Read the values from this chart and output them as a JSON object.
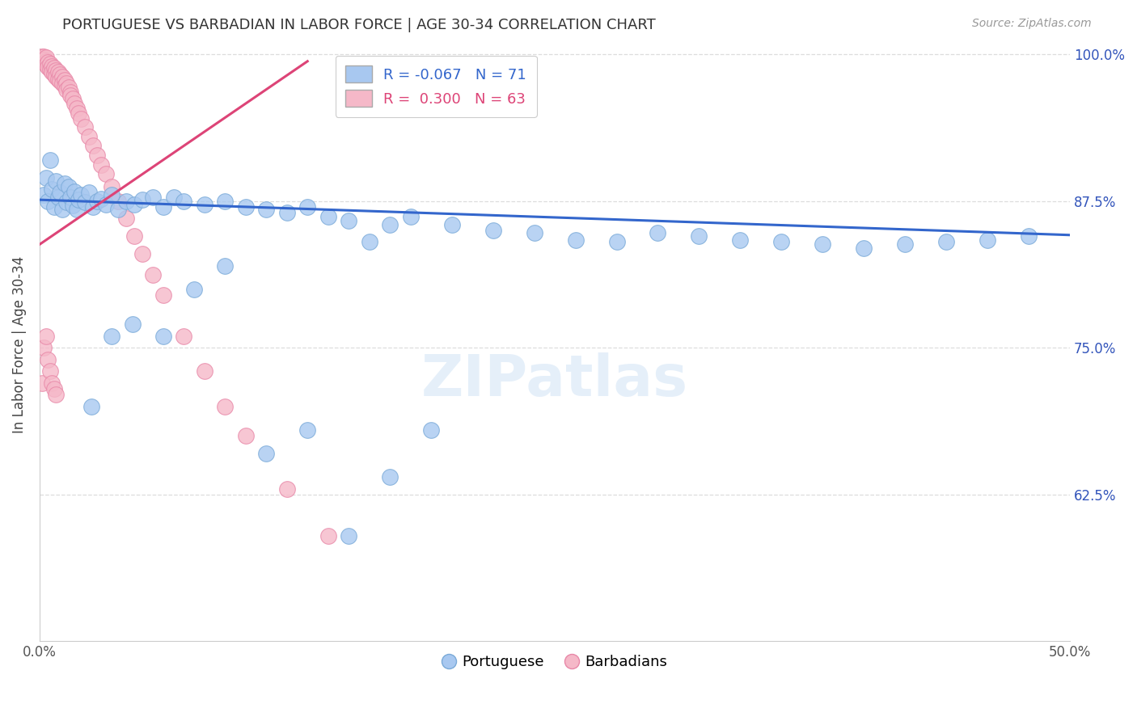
{
  "title": "PORTUGUESE VS BARBADIAN IN LABOR FORCE | AGE 30-34 CORRELATION CHART",
  "source": "Source: ZipAtlas.com",
  "ylabel": "In Labor Force | Age 30-34",
  "xlim": [
    0.0,
    0.5
  ],
  "ylim": [
    0.5,
    1.005
  ],
  "legend_blue_r": "-0.067",
  "legend_blue_n": "71",
  "legend_pink_r": "0.300",
  "legend_pink_n": "63",
  "blue_color": "#a8c8f0",
  "pink_color": "#f5b8c8",
  "blue_edge_color": "#7aaad8",
  "pink_edge_color": "#e888a8",
  "blue_line_color": "#3366cc",
  "pink_line_color": "#dd4477",
  "watermark": "ZIPatlas",
  "portuguese_x": [
    0.002,
    0.003,
    0.004,
    0.005,
    0.006,
    0.007,
    0.008,
    0.009,
    0.01,
    0.011,
    0.012,
    0.013,
    0.014,
    0.015,
    0.016,
    0.017,
    0.018,
    0.019,
    0.02,
    0.022,
    0.024,
    0.026,
    0.028,
    0.03,
    0.032,
    0.035,
    0.038,
    0.042,
    0.046,
    0.05,
    0.055,
    0.06,
    0.065,
    0.07,
    0.08,
    0.09,
    0.1,
    0.11,
    0.12,
    0.13,
    0.14,
    0.15,
    0.16,
    0.17,
    0.18,
    0.2,
    0.22,
    0.24,
    0.26,
    0.28,
    0.3,
    0.32,
    0.34,
    0.36,
    0.38,
    0.4,
    0.42,
    0.44,
    0.46,
    0.48,
    0.025,
    0.035,
    0.045,
    0.06,
    0.075,
    0.09,
    0.11,
    0.13,
    0.15,
    0.17,
    0.19
  ],
  "portuguese_y": [
    0.88,
    0.895,
    0.875,
    0.91,
    0.885,
    0.87,
    0.892,
    0.878,
    0.882,
    0.868,
    0.89,
    0.874,
    0.887,
    0.878,
    0.871,
    0.883,
    0.868,
    0.876,
    0.88,
    0.874,
    0.882,
    0.87,
    0.875,
    0.877,
    0.872,
    0.88,
    0.868,
    0.875,
    0.872,
    0.876,
    0.878,
    0.87,
    0.878,
    0.875,
    0.872,
    0.875,
    0.87,
    0.868,
    0.865,
    0.87,
    0.862,
    0.858,
    0.84,
    0.855,
    0.862,
    0.855,
    0.85,
    0.848,
    0.842,
    0.84,
    0.848,
    0.845,
    0.842,
    0.84,
    0.838,
    0.835,
    0.838,
    0.84,
    0.842,
    0.845,
    0.7,
    0.76,
    0.77,
    0.76,
    0.8,
    0.82,
    0.66,
    0.68,
    0.59,
    0.64,
    0.68
  ],
  "barbadian_x": [
    0.001,
    0.001,
    0.001,
    0.002,
    0.002,
    0.003,
    0.003,
    0.003,
    0.004,
    0.004,
    0.005,
    0.005,
    0.006,
    0.006,
    0.007,
    0.007,
    0.008,
    0.008,
    0.009,
    0.009,
    0.01,
    0.01,
    0.011,
    0.011,
    0.012,
    0.012,
    0.013,
    0.013,
    0.014,
    0.015,
    0.015,
    0.016,
    0.017,
    0.018,
    0.019,
    0.02,
    0.022,
    0.024,
    0.026,
    0.028,
    0.03,
    0.032,
    0.035,
    0.038,
    0.042,
    0.046,
    0.05,
    0.055,
    0.06,
    0.07,
    0.08,
    0.09,
    0.1,
    0.12,
    0.14,
    0.001,
    0.002,
    0.003,
    0.004,
    0.005,
    0.006,
    0.007,
    0.008
  ],
  "barbadian_y": [
    0.998,
    0.996,
    0.994,
    0.998,
    0.995,
    0.994,
    0.997,
    0.991,
    0.993,
    0.989,
    0.992,
    0.987,
    0.99,
    0.985,
    0.988,
    0.983,
    0.986,
    0.981,
    0.985,
    0.979,
    0.983,
    0.977,
    0.981,
    0.975,
    0.978,
    0.973,
    0.975,
    0.97,
    0.972,
    0.968,
    0.965,
    0.962,
    0.958,
    0.954,
    0.95,
    0.945,
    0.938,
    0.93,
    0.922,
    0.914,
    0.906,
    0.898,
    0.887,
    0.875,
    0.86,
    0.845,
    0.83,
    0.812,
    0.795,
    0.76,
    0.73,
    0.7,
    0.675,
    0.63,
    0.59,
    0.72,
    0.75,
    0.76,
    0.74,
    0.73,
    0.72,
    0.715,
    0.71
  ]
}
